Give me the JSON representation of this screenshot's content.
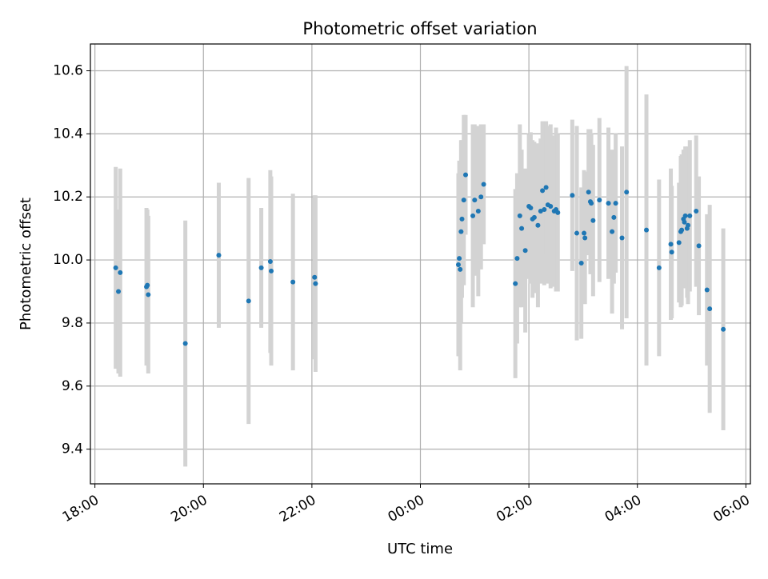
{
  "chart_data": {
    "type": "scatter",
    "title": "Photometric offset variation",
    "xlabel": "UTC time",
    "ylabel": "Photometric offset",
    "x_unit": "UTC time of day (hours, 18:00 start; values past 24 wrap to next day)",
    "xlim": [
      "17:55",
      "06:05"
    ],
    "ylim": [
      9.29,
      10.685
    ],
    "x_ticks": [
      "18:00",
      "20:00",
      "22:00",
      "00:00",
      "02:00",
      "04:00",
      "06:00"
    ],
    "y_ticks": [
      "9.4",
      "9.6",
      "9.8",
      "10.0",
      "10.2",
      "10.4",
      "10.6"
    ],
    "grid": true,
    "errorbar_color": "#d3d3d3",
    "point_color": "#1f77b4",
    "points": [
      {
        "t": "18:23",
        "y": 9.975,
        "err": 0.32
      },
      {
        "t": "18:26",
        "y": 9.9,
        "err": 0.26
      },
      {
        "t": "18:28",
        "y": 9.96,
        "err": 0.33
      },
      {
        "t": "18:57",
        "y": 9.915,
        "err": 0.25
      },
      {
        "t": "18:58",
        "y": 9.92,
        "err": 0.24
      },
      {
        "t": "18:59",
        "y": 9.89,
        "err": 0.25
      },
      {
        "t": "19:40",
        "y": 9.735,
        "err": 0.39
      },
      {
        "t": "20:17",
        "y": 10.015,
        "err": 0.23
      },
      {
        "t": "20:50",
        "y": 9.87,
        "err": 0.39
      },
      {
        "t": "21:04",
        "y": 9.975,
        "err": 0.19
      },
      {
        "t": "21:14",
        "y": 9.995,
        "err": 0.29
      },
      {
        "t": "21:15",
        "y": 9.965,
        "err": 0.3
      },
      {
        "t": "21:39",
        "y": 9.93,
        "err": 0.28
      },
      {
        "t": "22:03",
        "y": 9.945,
        "err": 0.26
      },
      {
        "t": "22:04",
        "y": 9.925,
        "err": 0.28
      },
      {
        "t": "00:42",
        "y": 9.985,
        "err": 0.29
      },
      {
        "t": "00:43",
        "y": 10.005,
        "err": 0.31
      },
      {
        "t": "00:44",
        "y": 9.97,
        "err": 0.32
      },
      {
        "t": "00:45",
        "y": 10.09,
        "err": 0.29
      },
      {
        "t": "00:46",
        "y": 10.13,
        "err": 0.25
      },
      {
        "t": "00:48",
        "y": 10.19,
        "err": 0.27
      },
      {
        "t": "00:50",
        "y": 10.27,
        "err": 0.19
      },
      {
        "t": "00:58",
        "y": 10.14,
        "err": 0.29
      },
      {
        "t": "01:00",
        "y": 10.19,
        "err": 0.24
      },
      {
        "t": "01:04",
        "y": 10.155,
        "err": 0.27
      },
      {
        "t": "01:07",
        "y": 10.2,
        "err": 0.23
      },
      {
        "t": "01:10",
        "y": 10.24,
        "err": 0.19
      },
      {
        "t": "01:45",
        "y": 9.925,
        "err": 0.3
      },
      {
        "t": "01:47",
        "y": 10.005,
        "err": 0.27
      },
      {
        "t": "01:50",
        "y": 10.14,
        "err": 0.29
      },
      {
        "t": "01:52",
        "y": 10.1,
        "err": 0.25
      },
      {
        "t": "01:56",
        "y": 10.03,
        "err": 0.26
      },
      {
        "t": "02:00",
        "y": 10.17,
        "err": 0.23
      },
      {
        "t": "02:02",
        "y": 10.165,
        "err": 0.24
      },
      {
        "t": "02:04",
        "y": 10.13,
        "err": 0.25
      },
      {
        "t": "02:06",
        "y": 10.135,
        "err": 0.24
      },
      {
        "t": "02:10",
        "y": 10.11,
        "err": 0.26
      },
      {
        "t": "02:13",
        "y": 10.155,
        "err": 0.23
      },
      {
        "t": "02:15",
        "y": 10.22,
        "err": 0.22
      },
      {
        "t": "02:17",
        "y": 10.16,
        "err": 0.24
      },
      {
        "t": "02:19",
        "y": 10.23,
        "err": 0.21
      },
      {
        "t": "02:21",
        "y": 10.175,
        "err": 0.25
      },
      {
        "t": "02:24",
        "y": 10.17,
        "err": 0.26
      },
      {
        "t": "02:28",
        "y": 10.155,
        "err": 0.24
      },
      {
        "t": "02:30",
        "y": 10.16,
        "err": 0.26
      },
      {
        "t": "02:32",
        "y": 10.15,
        "err": 0.25
      },
      {
        "t": "02:48",
        "y": 10.205,
        "err": 0.24
      },
      {
        "t": "02:53",
        "y": 10.085,
        "err": 0.34
      },
      {
        "t": "02:58",
        "y": 9.99,
        "err": 0.24
      },
      {
        "t": "03:01",
        "y": 10.085,
        "err": 0.2
      },
      {
        "t": "03:02",
        "y": 10.07,
        "err": 0.21
      },
      {
        "t": "03:06",
        "y": 10.215,
        "err": 0.2
      },
      {
        "t": "03:08",
        "y": 10.185,
        "err": 0.23
      },
      {
        "t": "03:09",
        "y": 10.18,
        "err": 0.22
      },
      {
        "t": "03:11",
        "y": 10.125,
        "err": 0.24
      },
      {
        "t": "03:18",
        "y": 10.19,
        "err": 0.26
      },
      {
        "t": "03:28",
        "y": 10.18,
        "err": 0.24
      },
      {
        "t": "03:32",
        "y": 10.09,
        "err": 0.26
      },
      {
        "t": "03:34",
        "y": 10.135,
        "err": 0.21
      },
      {
        "t": "03:36",
        "y": 10.18,
        "err": 0.22
      },
      {
        "t": "03:43",
        "y": 10.07,
        "err": 0.29
      },
      {
        "t": "03:48",
        "y": 10.215,
        "err": 0.4
      },
      {
        "t": "04:10",
        "y": 10.095,
        "err": 0.43
      },
      {
        "t": "04:24",
        "y": 9.975,
        "err": 0.28
      },
      {
        "t": "04:37",
        "y": 10.05,
        "err": 0.24
      },
      {
        "t": "04:38",
        "y": 10.025,
        "err": 0.21
      },
      {
        "t": "04:46",
        "y": 10.055,
        "err": 0.19
      },
      {
        "t": "04:48",
        "y": 10.09,
        "err": 0.24
      },
      {
        "t": "04:49",
        "y": 10.095,
        "err": 0.24
      },
      {
        "t": "04:51",
        "y": 10.13,
        "err": 0.22
      },
      {
        "t": "04:52",
        "y": 10.12,
        "err": 0.21
      },
      {
        "t": "04:53",
        "y": 10.14,
        "err": 0.22
      },
      {
        "t": "04:55",
        "y": 10.1,
        "err": 0.22
      },
      {
        "t": "04:56",
        "y": 10.11,
        "err": 0.25
      },
      {
        "t": "04:58",
        "y": 10.14,
        "err": 0.24
      },
      {
        "t": "05:05",
        "y": 10.155,
        "err": 0.24
      },
      {
        "t": "05:08",
        "y": 10.045,
        "err": 0.22
      },
      {
        "t": "05:17",
        "y": 9.905,
        "err": 0.24
      },
      {
        "t": "05:20",
        "y": 9.845,
        "err": 0.33
      },
      {
        "t": "05:35",
        "y": 9.78,
        "err": 0.32
      }
    ]
  }
}
